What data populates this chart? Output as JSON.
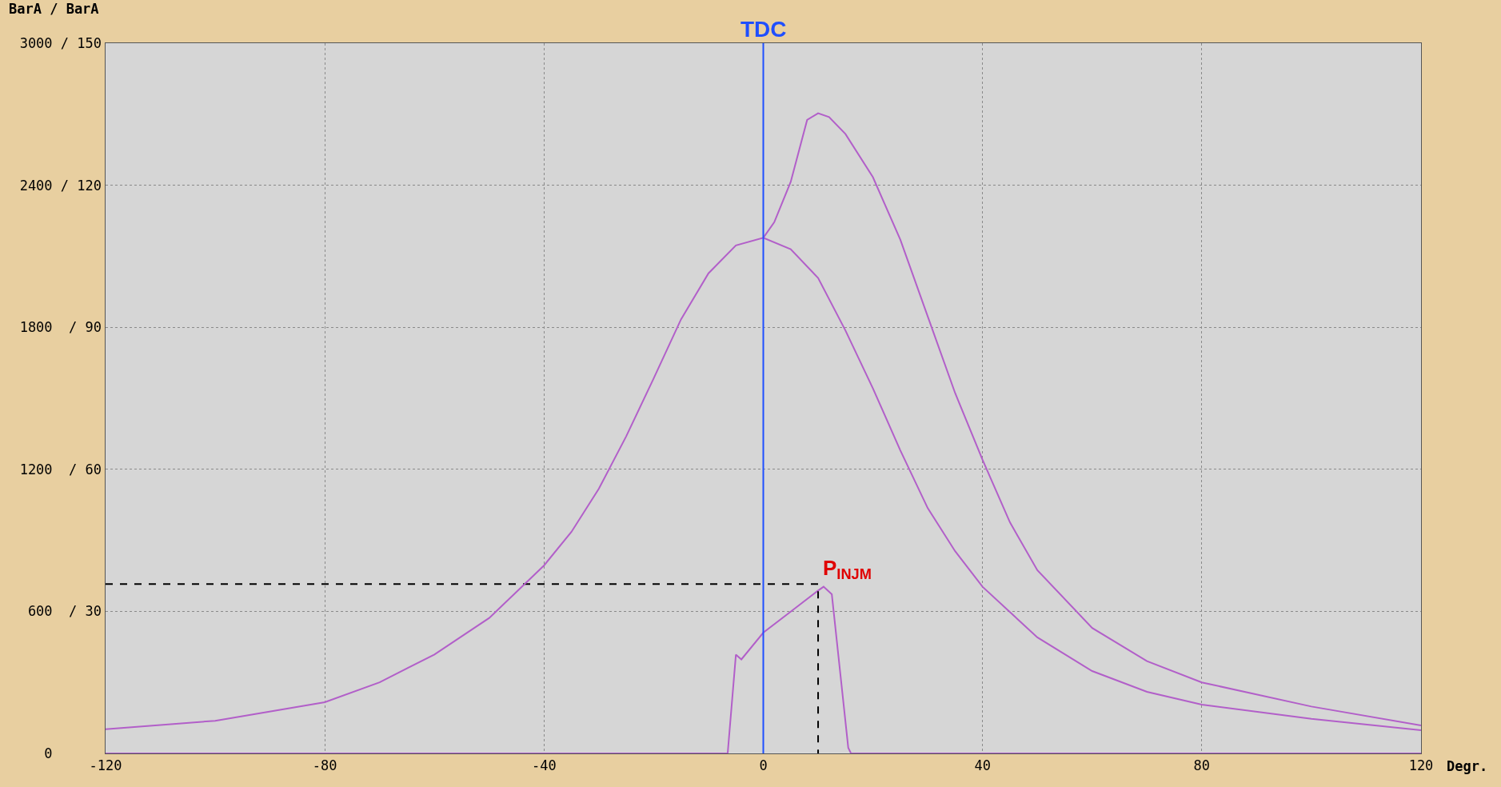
{
  "chart_data": {
    "type": "line",
    "xlabel": "Degr.",
    "ylabel": "BarA / BarA",
    "xlim": [
      -120,
      120
    ],
    "xticks": [
      -120,
      -80,
      -40,
      0,
      40,
      80,
      120
    ],
    "ylim": [
      0,
      3000
    ],
    "yticks": [
      0,
      600,
      1200,
      1800,
      2400,
      3000
    ],
    "y2lim": [
      0,
      150
    ],
    "y2ticks": [
      {
        "value": 30,
        "label": "/ 30"
      },
      {
        "value": 60,
        "label": "/ 60"
      },
      {
        "value": 90,
        "label": "/ 90"
      },
      {
        "value": 120,
        "label": "/ 120"
      },
      {
        "value": 150,
        "label": "/ 150"
      }
    ],
    "grid": true,
    "marker": "none",
    "line_style": "solid",
    "series": [
      {
        "color": "#b25fc9",
        "axis": "y2",
        "x": [
          -120,
          -100,
          -80,
          -70,
          -60,
          -50,
          -40,
          -35,
          -30,
          -25,
          -20,
          -15,
          -10,
          -5,
          0,
          5,
          10,
          15,
          20,
          25,
          30,
          35,
          40,
          50,
          60,
          70,
          80,
          100,
          120
        ],
        "values": [
          5.1,
          6.9,
          10.8,
          15,
          20.9,
          28.6,
          39.7,
          46.8,
          55.9,
          67,
          79.2,
          91.7,
          101.4,
          107.3,
          108.9,
          106.5,
          100.4,
          89.3,
          77.1,
          64,
          51.8,
          42.7,
          35.2,
          24.5,
          17.4,
          13,
          10.3,
          7.3,
          4.9
        ]
      },
      {
        "color": "#b25fc9",
        "axis": "y2",
        "x": [
          0,
          2,
          5,
          8,
          10,
          12,
          15,
          20,
          25,
          30,
          35,
          40,
          45,
          50,
          60,
          70,
          80,
          100,
          120
        ],
        "values": [
          108.9,
          112.2,
          120.7,
          133.8,
          135.2,
          134.4,
          130.8,
          121.7,
          108.5,
          92.3,
          76.1,
          62,
          48.8,
          38.7,
          26.5,
          19.5,
          15,
          9.9,
          5.9
        ]
      },
      {
        "color": "#b25fc9",
        "x": [
          -120,
          -6.5,
          -5,
          -4,
          0,
          5,
          10,
          11,
          12.5,
          14,
          15.5,
          16,
          120
        ],
        "values": [
          0,
          0,
          417,
          397,
          510,
          599,
          688,
          704,
          672,
          348,
          24,
          0,
          0
        ]
      },
      {
        "color": "#000000",
        "line_style": "dashed",
        "x": [
          -120,
          10,
          10
        ],
        "values": [
          715,
          715,
          0
        ]
      }
    ],
    "ref_lines": [
      {
        "axis": "x",
        "value": 0,
        "label": "TDC",
        "color": "#1f4fff"
      }
    ],
    "annotations": [
      {
        "text": "P$_{INJM}$",
        "x": 10,
        "y": 715
      }
    ]
  }
}
